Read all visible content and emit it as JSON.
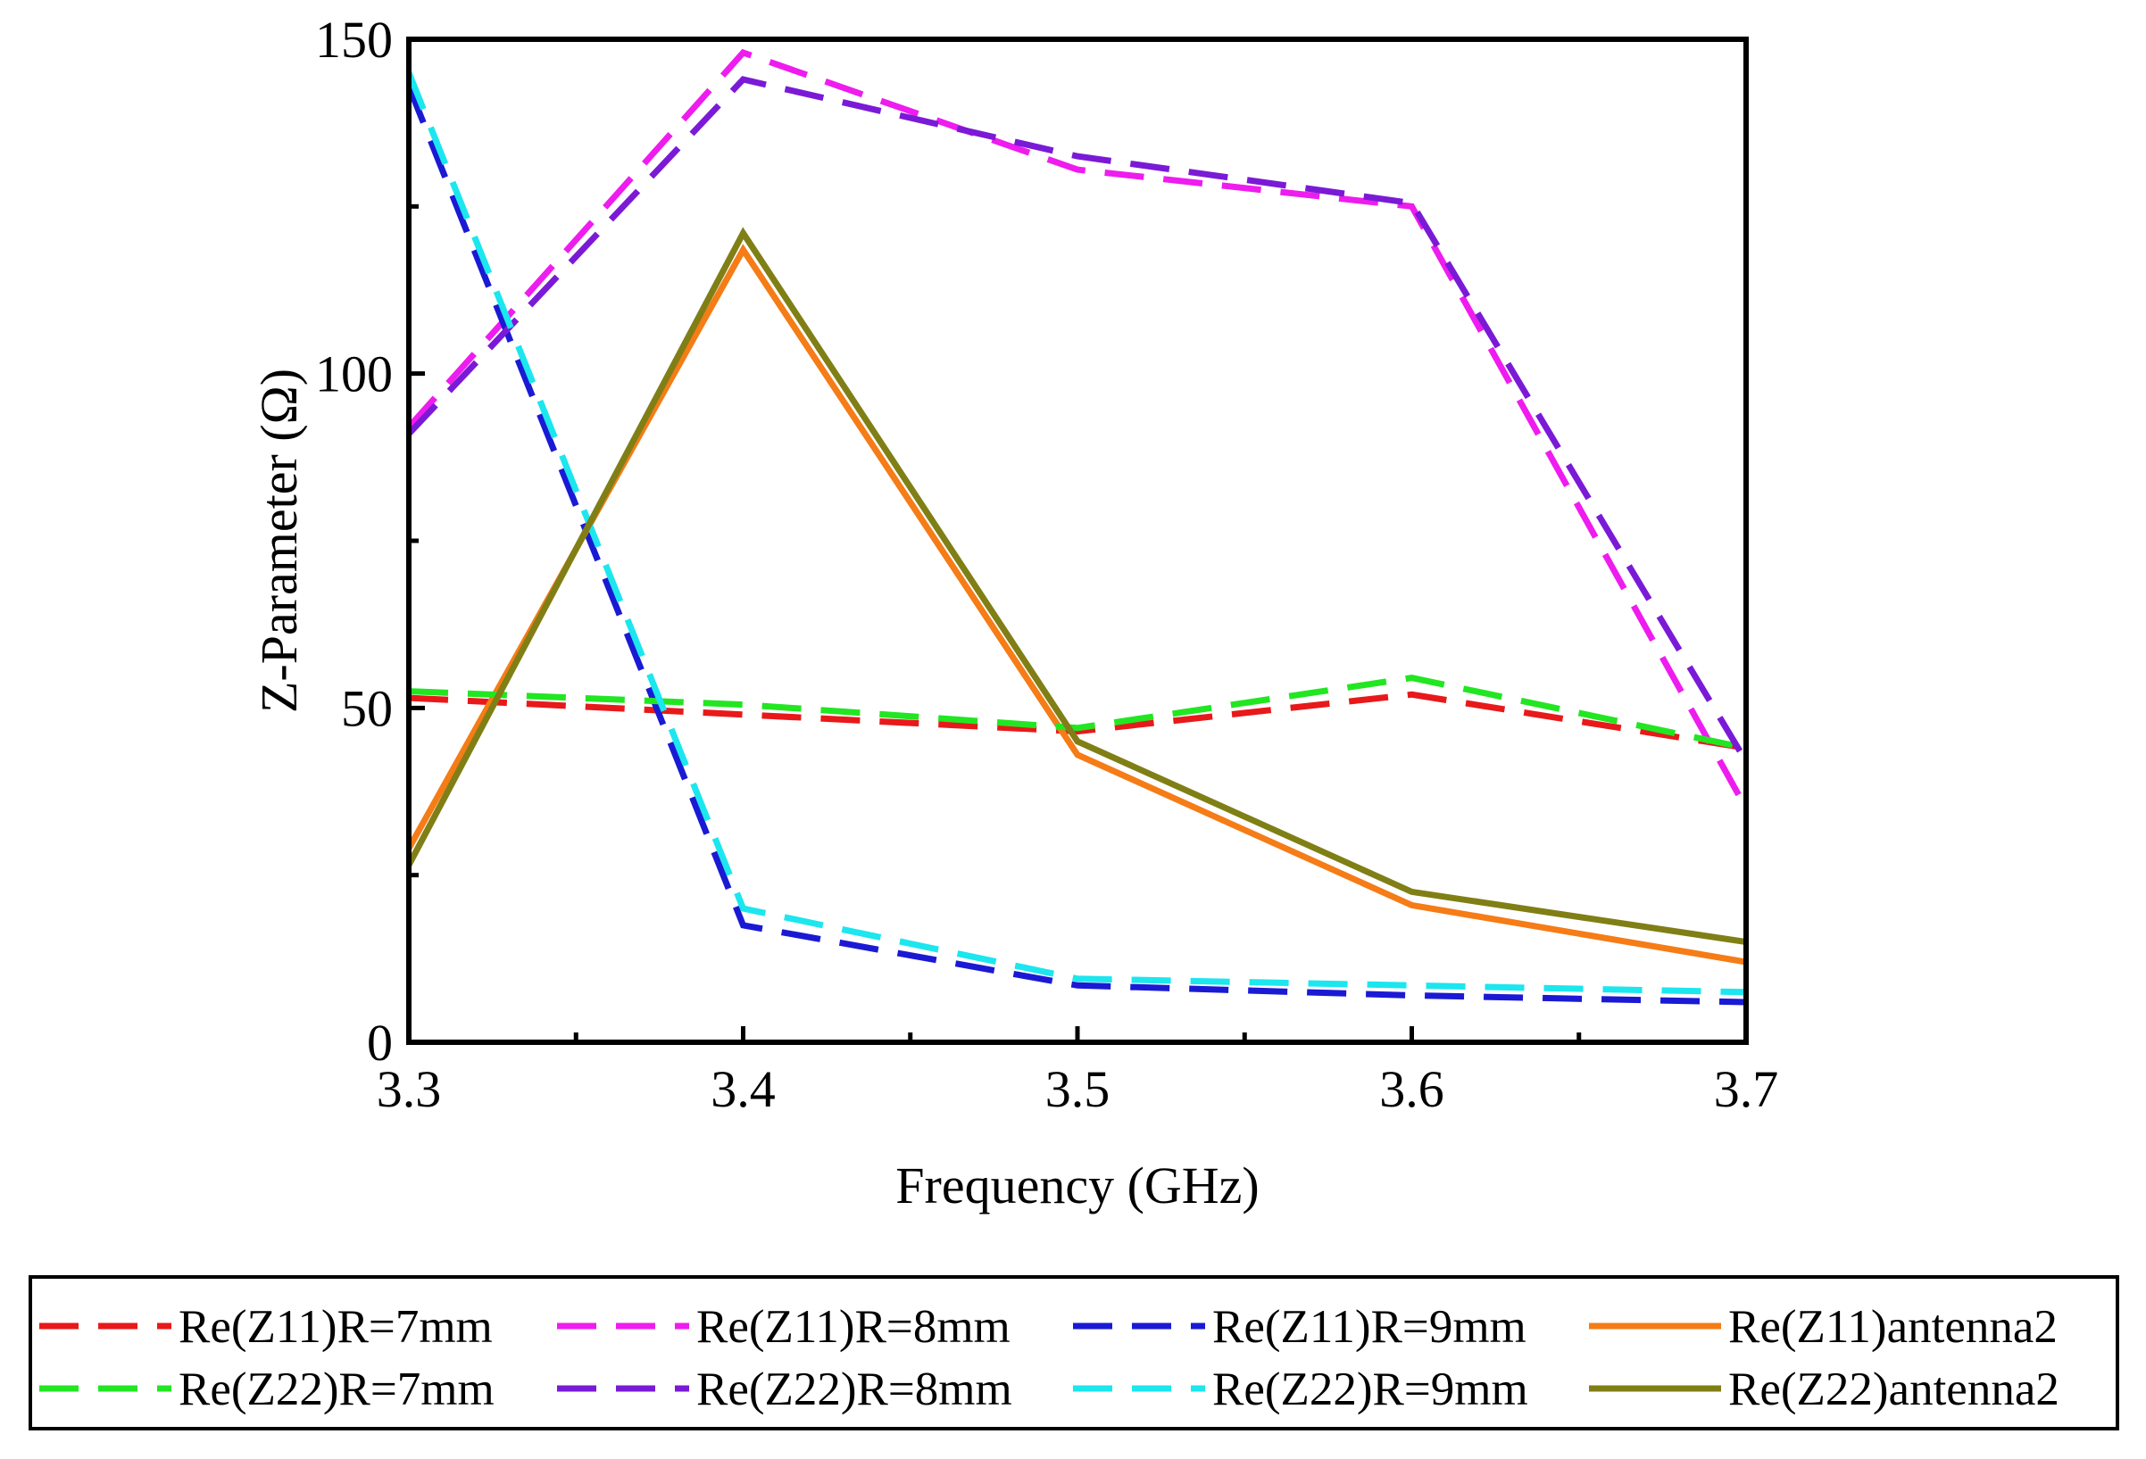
{
  "chart_data": {
    "type": "line",
    "xlabel": "Frequency (GHz)",
    "ylabel": "Z-Parameter (Ω)",
    "xlim": [
      3.3,
      3.7
    ],
    "ylim": [
      0,
      150
    ],
    "xticks": [
      "3.3",
      "3.4",
      "3.5",
      "3.6",
      "3.7"
    ],
    "yticks": [
      "0",
      "50",
      "100",
      "150"
    ],
    "grid": false,
    "legend_position": "bottom",
    "series": [
      {
        "name": "Re(Z11)R=7mm",
        "color": "#e8191a",
        "style": "dashed",
        "x": [
          3.3,
          3.4,
          3.5,
          3.6,
          3.7
        ],
        "y": [
          51.5,
          49,
          46.5,
          52,
          44
        ]
      },
      {
        "name": "Re(Z11)R=8mm",
        "color": "#ee1cee",
        "style": "dashed",
        "x": [
          3.3,
          3.4,
          3.5,
          3.6,
          3.7
        ],
        "y": [
          92,
          148,
          130.5,
          125,
          35
        ]
      },
      {
        "name": "Re(Z11)R=9mm",
        "color": "#1a1ad4",
        "style": "dashed",
        "x": [
          3.3,
          3.4,
          3.5,
          3.6,
          3.7
        ],
        "y": [
          143,
          17.5,
          8.5,
          7,
          6
        ]
      },
      {
        "name": "Re(Z11)antenna2",
        "color": "#f57c16",
        "style": "solid",
        "x": [
          3.3,
          3.4,
          3.5,
          3.6,
          3.7
        ],
        "y": [
          29,
          118.5,
          43,
          20.5,
          12
        ]
      },
      {
        "name": "Re(Z22)R=7mm",
        "color": "#22e622",
        "style": "dashed",
        "x": [
          3.3,
          3.4,
          3.5,
          3.6,
          3.7
        ],
        "y": [
          52.5,
          50.5,
          47,
          54.5,
          44
        ]
      },
      {
        "name": "Re(Z22)R=8mm",
        "color": "#7a1ad6",
        "style": "dashed",
        "x": [
          3.3,
          3.4,
          3.5,
          3.6,
          3.7
        ],
        "y": [
          91,
          144,
          132.5,
          125.5,
          42
        ]
      },
      {
        "name": "Re(Z22)R=9mm",
        "color": "#1ce6ee",
        "style": "dashed",
        "x": [
          3.3,
          3.4,
          3.5,
          3.6,
          3.7
        ],
        "y": [
          145,
          20,
          9.5,
          8.5,
          7.5
        ]
      },
      {
        "name": "Re(Z22)antenna2",
        "color": "#7f7f16",
        "style": "solid",
        "x": [
          3.3,
          3.4,
          3.5,
          3.6,
          3.7
        ],
        "y": [
          26.5,
          121,
          45,
          22.5,
          15
        ]
      }
    ]
  }
}
